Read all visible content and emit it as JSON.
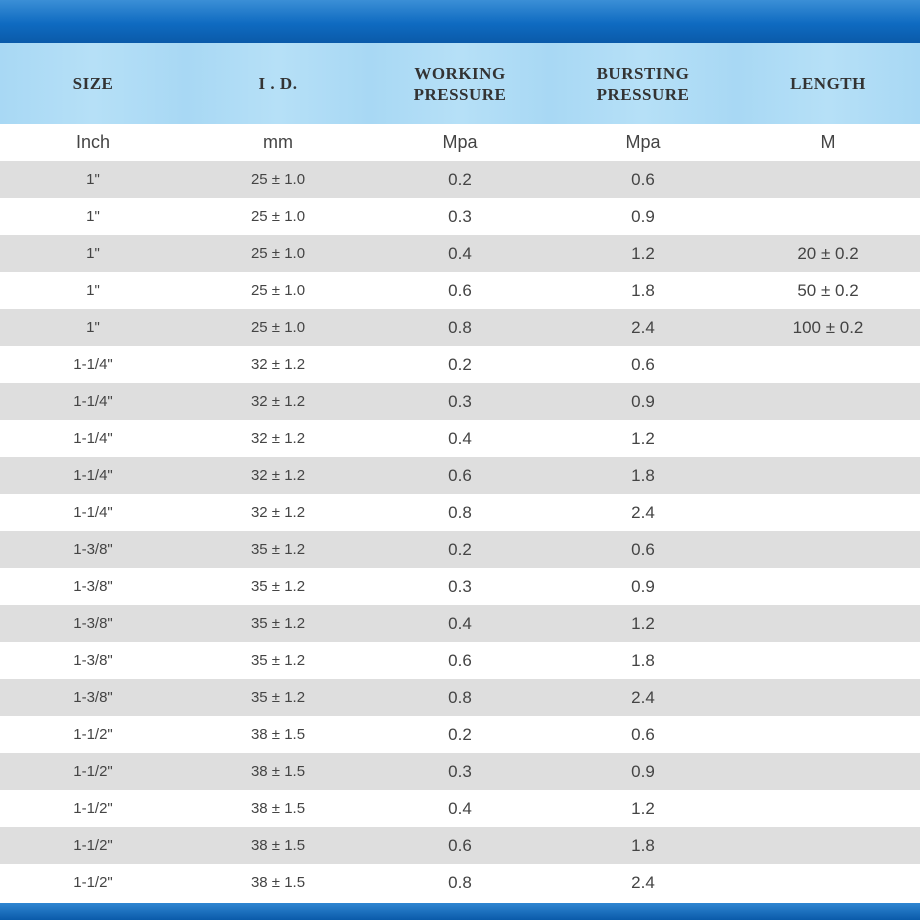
{
  "header": {
    "size": "SIZE",
    "id": "I . D.",
    "working_pressure": "WORKING PRESSURE",
    "bursting_pressure": "BURSTING PRESSURE",
    "length": "LENGTH"
  },
  "units": {
    "size": "Inch",
    "id": "mm",
    "working_pressure": "Mpa",
    "bursting_pressure": "Mpa",
    "length": "M"
  },
  "rows": [
    {
      "size": "1\"",
      "id": "25 ± 1.0",
      "wp": "0.2",
      "bp": "0.6",
      "len": ""
    },
    {
      "size": "1\"",
      "id": "25 ± 1.0",
      "wp": "0.3",
      "bp": "0.9",
      "len": ""
    },
    {
      "size": "1\"",
      "id": "25 ± 1.0",
      "wp": "0.4",
      "bp": "1.2",
      "len": "20 ± 0.2"
    },
    {
      "size": "1\"",
      "id": "25 ± 1.0",
      "wp": "0.6",
      "bp": "1.8",
      "len": "50 ± 0.2"
    },
    {
      "size": "1\"",
      "id": "25 ± 1.0",
      "wp": "0.8",
      "bp": "2.4",
      "len": "100 ± 0.2"
    },
    {
      "size": "1-1/4\"",
      "id": "32 ± 1.2",
      "wp": "0.2",
      "bp": "0.6",
      "len": ""
    },
    {
      "size": "1-1/4\"",
      "id": "32 ± 1.2",
      "wp": "0.3",
      "bp": "0.9",
      "len": ""
    },
    {
      "size": "1-1/4\"",
      "id": "32 ± 1.2",
      "wp": "0.4",
      "bp": "1.2",
      "len": ""
    },
    {
      "size": "1-1/4\"",
      "id": "32 ± 1.2",
      "wp": "0.6",
      "bp": "1.8",
      "len": ""
    },
    {
      "size": "1-1/4\"",
      "id": "32 ± 1.2",
      "wp": "0.8",
      "bp": "2.4",
      "len": ""
    },
    {
      "size": "1-3/8\"",
      "id": "35 ± 1.2",
      "wp": "0.2",
      "bp": "0.6",
      "len": ""
    },
    {
      "size": "1-3/8\"",
      "id": "35 ± 1.2",
      "wp": "0.3",
      "bp": "0.9",
      "len": ""
    },
    {
      "size": "1-3/8\"",
      "id": "35 ± 1.2",
      "wp": "0.4",
      "bp": "1.2",
      "len": ""
    },
    {
      "size": "1-3/8\"",
      "id": "35 ± 1.2",
      "wp": "0.6",
      "bp": "1.8",
      "len": ""
    },
    {
      "size": "1-3/8\"",
      "id": "35 ± 1.2",
      "wp": "0.8",
      "bp": "2.4",
      "len": ""
    },
    {
      "size": "1-1/2\"",
      "id": "38 ± 1.5",
      "wp": "0.2",
      "bp": "0.6",
      "len": ""
    },
    {
      "size": "1-1/2\"",
      "id": "38 ± 1.5",
      "wp": "0.3",
      "bp": "0.9",
      "len": ""
    },
    {
      "size": "1-1/2\"",
      "id": "38 ± 1.5",
      "wp": "0.4",
      "bp": "1.2",
      "len": ""
    },
    {
      "size": "1-1/2\"",
      "id": "38 ± 1.5",
      "wp": "0.6",
      "bp": "1.8",
      "len": ""
    },
    {
      "size": "1-1/2\"",
      "id": "38 ± 1.5",
      "wp": "0.8",
      "bp": "2.4",
      "len": ""
    }
  ],
  "colors": {
    "band_blue": "#0f6bc1",
    "header_bg": "#a8d8f4",
    "row_shade": "#dedede"
  }
}
